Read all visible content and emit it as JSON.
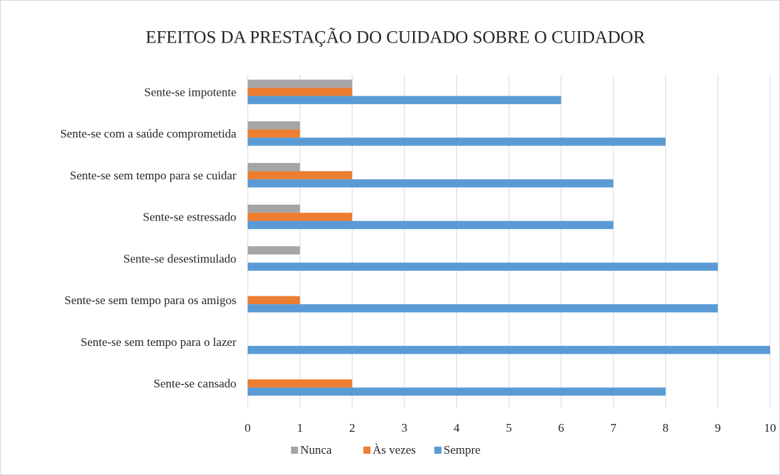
{
  "chart_data": {
    "type": "hbar",
    "title": "EFEITOS DA PRESTAÇÃO DO CUIDADO SOBRE O CUIDADOR",
    "categories": [
      "Sente-se impotente",
      "Sente-se com a saúde comprometida",
      "Sente-se sem tempo para se cuidar",
      "Sente-se estressado",
      "Sente-se desestimulado",
      "Sente-se sem tempo para os amigos",
      "Sente-se sem tempo para o lazer",
      "Sente-se cansado"
    ],
    "series": [
      {
        "name": "Nunca",
        "color": "#a5a5a5",
        "values": [
          2,
          1,
          1,
          1,
          1,
          0,
          0,
          0
        ]
      },
      {
        "name": "Às vezes",
        "color": "#ed7d31",
        "values": [
          2,
          1,
          2,
          2,
          0,
          1,
          0,
          2
        ]
      },
      {
        "name": "Sempre",
        "color": "#5b9bd5",
        "values": [
          6,
          8,
          7,
          7,
          9,
          9,
          10,
          8
        ]
      }
    ],
    "xlim": [
      0,
      10
    ],
    "xticks": [
      0,
      1,
      2,
      3,
      4,
      5,
      6,
      7,
      8,
      9,
      10
    ],
    "grid": true,
    "legend": "bottom"
  }
}
